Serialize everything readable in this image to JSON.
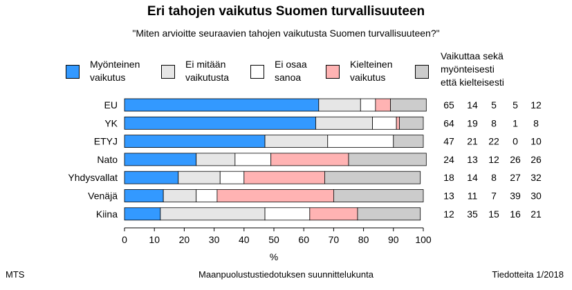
{
  "title": "Eri tahojen vaikutus Suomen turvallisuuteen",
  "subtitle": "\"Miten arvioitte seuraavien tahojen vaikutusta Suomen turvallisuuteen?\"",
  "footer": {
    "left": "MTS",
    "center": "Maanpuolustustiedotuksen suunnittelukunta",
    "right": "Tiedotteita 1/2018"
  },
  "chart_data": {
    "type": "bar",
    "orientation": "horizontal",
    "stacked": true,
    "xlabel": "%",
    "xlim": [
      0,
      100
    ],
    "xticks": [
      0,
      10,
      20,
      30,
      40,
      50,
      60,
      70,
      80,
      90,
      100
    ],
    "categories": [
      "EU",
      "YK",
      "ETYJ",
      "Nato",
      "Yhdysvallat",
      "Venäjä",
      "Kiina"
    ],
    "series": [
      {
        "name": "Myönteinen\nvaikutus",
        "color": "#3399ff",
        "values": [
          65,
          64,
          47,
          24,
          18,
          13,
          12
        ]
      },
      {
        "name": "Ei mitään\nvaikutusta",
        "color": "#e6e6e6",
        "values": [
          14,
          19,
          21,
          13,
          14,
          11,
          35
        ]
      },
      {
        "name": "Ei osaa\nsanoa",
        "color": "#ffffff",
        "values": [
          5,
          8,
          22,
          12,
          8,
          7,
          15
        ]
      },
      {
        "name": "Kielteinen\nvaikutus",
        "color": "#ffb3b3",
        "values": [
          5,
          1,
          0,
          26,
          27,
          39,
          16
        ]
      },
      {
        "name": "",
        "color": "#cccccc",
        "values": [
          12,
          8,
          10,
          26,
          32,
          30,
          21
        ]
      }
    ],
    "extra_column_label": "Vaikuttaa sekä\nmyönteisesti\nettä kielteisesti",
    "grid": false,
    "legend": "top"
  }
}
